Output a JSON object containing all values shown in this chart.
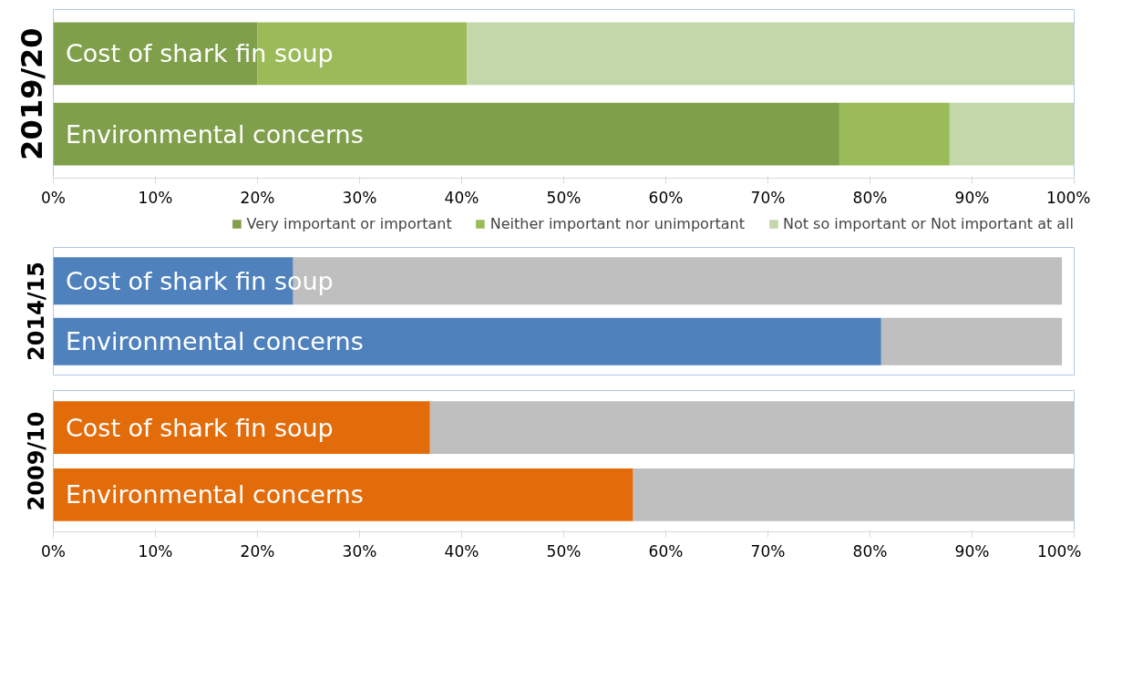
{
  "chart_data": [
    {
      "type": "bar",
      "orientation": "horizontal",
      "stacked": true,
      "ylabel": "2019/20",
      "categories": [
        "Cost of shark fin soup",
        "Environmental concerns"
      ],
      "series": [
        {
          "name": "Very important or important",
          "color": "#7f9f4b",
          "values": [
            20,
            77
          ]
        },
        {
          "name": "Neither important nor unimportant",
          "color": "#9bbb59",
          "values": [
            20.5,
            10.8
          ]
        },
        {
          "name": "Not so important or Not important at all",
          "color": "#c4d7ab",
          "values": [
            59.5,
            12.2
          ]
        }
      ],
      "xlim": [
        0,
        100
      ],
      "xticks": [
        {
          "value": 0,
          "label": "0%"
        },
        {
          "value": 10,
          "label": "10%"
        },
        {
          "value": 20,
          "label": "20%"
        },
        {
          "value": 30,
          "label": "30%"
        },
        {
          "value": 40,
          "label": "40%"
        },
        {
          "value": 50,
          "label": "50%"
        },
        {
          "value": 60,
          "label": "60%"
        },
        {
          "value": 70,
          "label": "70%"
        },
        {
          "value": 80,
          "label": "80%"
        },
        {
          "value": 90,
          "label": "90%"
        },
        {
          "value": 100,
          "label": "100%"
        }
      ],
      "tick_labels": "x",
      "legend": "bottom"
    },
    {
      "type": "bar",
      "orientation": "horizontal",
      "stacked": true,
      "ylabel": "2014/15",
      "categories": [
        "Cost of shark fin soup",
        "Environmental concerns"
      ],
      "series": [
        {
          "color": "#4f81bd",
          "values": [
            23.5,
            81.1
          ]
        },
        {
          "color": "#bfbfbf",
          "values": [
            75.3,
            17.7
          ]
        }
      ],
      "xlim": [
        0,
        100
      ],
      "tick_labels": false
    },
    {
      "type": "bar",
      "orientation": "horizontal",
      "stacked": true,
      "ylabel": "2009/10",
      "categories": [
        "Cost of shark fin soup",
        "Environmental concerns"
      ],
      "series": [
        {
          "color": "#e36c0a",
          "values": [
            36.9,
            56.8
          ]
        },
        {
          "color": "#bfbfbf",
          "values": [
            63.1,
            43.2
          ]
        }
      ],
      "xlim": [
        0,
        100
      ],
      "xticks": [
        {
          "value": 0,
          "label": "0%"
        },
        {
          "value": 10,
          "label": "10%"
        },
        {
          "value": 20,
          "label": "20%"
        },
        {
          "value": 30,
          "label": "30%"
        },
        {
          "value": 40,
          "label": "40%"
        },
        {
          "value": 50,
          "label": "50%"
        },
        {
          "value": 60,
          "label": "60%"
        },
        {
          "value": 70,
          "label": "70%"
        },
        {
          "value": 80,
          "label": "80%"
        },
        {
          "value": 90,
          "label": "90%"
        },
        {
          "value": 100,
          "label": "100%"
        }
      ],
      "tick_labels": "x"
    }
  ]
}
